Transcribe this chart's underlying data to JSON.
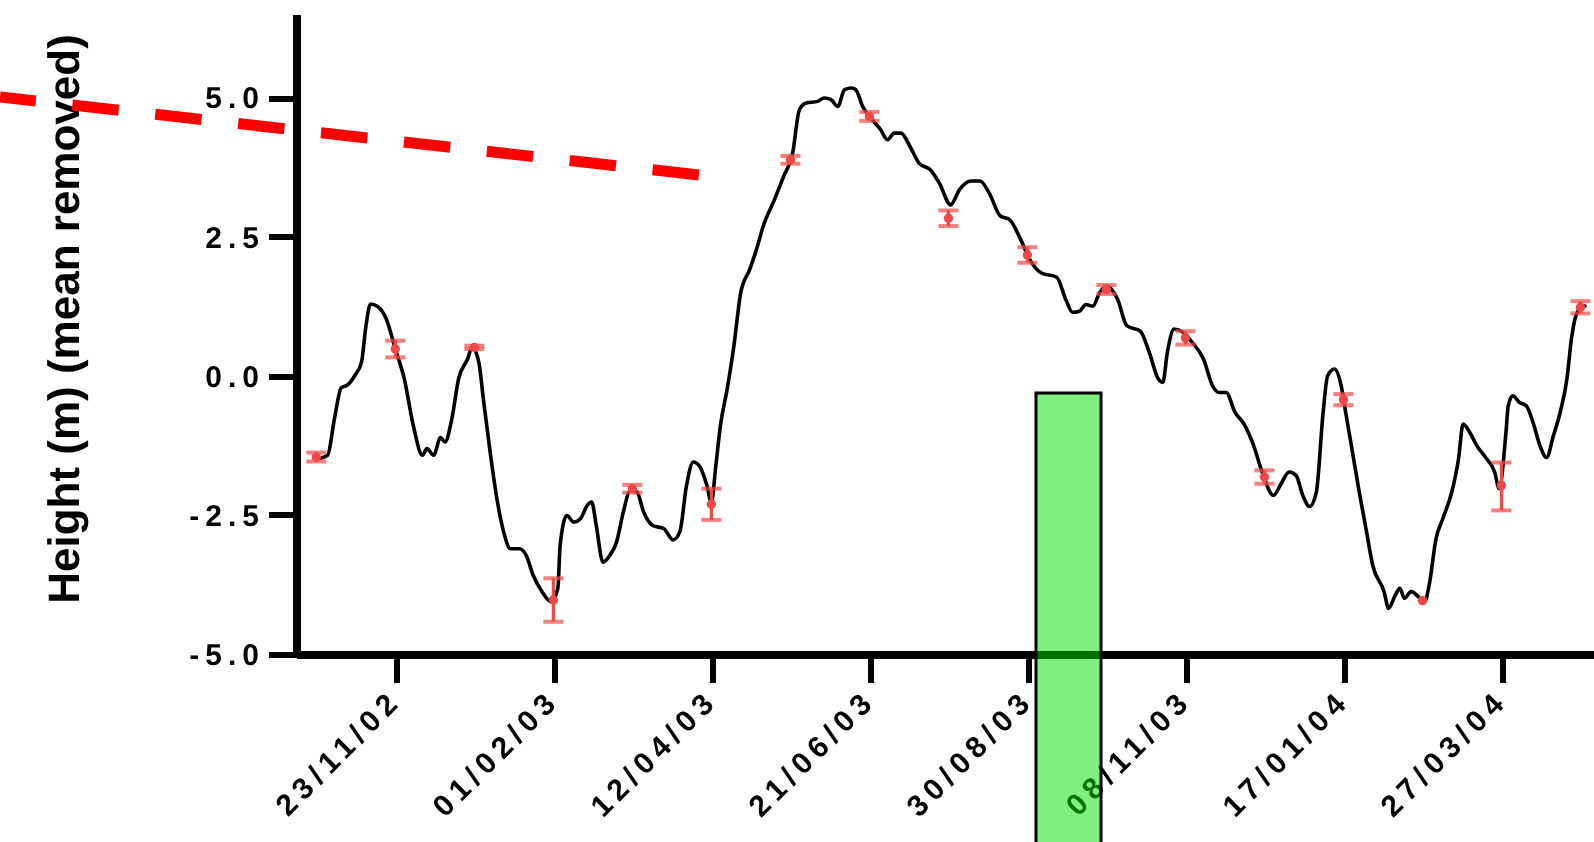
{
  "chart_data": {
    "type": "line",
    "ylabel": "Height (m) (mean removed)",
    "xlim": [
      "2002-10-10",
      "2004-05-07"
    ],
    "xticks": [
      {
        "value": "2002-11-23",
        "label": "23/11/02"
      },
      {
        "value": "2003-02-01",
        "label": "01/02/03"
      },
      {
        "value": "2003-04-12",
        "label": "12/04/03"
      },
      {
        "value": "2003-06-21",
        "label": "21/06/03"
      },
      {
        "value": "2003-08-30",
        "label": "30/08/03"
      },
      {
        "value": "2003-11-08",
        "label": "08/11/03"
      },
      {
        "value": "2004-01-17",
        "label": "17/01/04"
      },
      {
        "value": "2004-03-27",
        "label": "27/03/04"
      }
    ],
    "ylim": [
      -5,
      6.5
    ],
    "yticks": [
      {
        "value": -5,
        "label": "-5.0"
      },
      {
        "value": -2.5,
        "label": "-2.5"
      },
      {
        "value": 0,
        "label": "0.0"
      },
      {
        "value": 2.5,
        "label": "2.5"
      },
      {
        "value": 5,
        "label": "5.0"
      }
    ],
    "series": [
      {
        "type": "line",
        "color": "#000000",
        "x": [
          "2002-10-20",
          "2002-10-24",
          "2002-10-27",
          "2002-10-30",
          "2002-11-02",
          "2002-11-05",
          "2002-11-08",
          "2002-11-10",
          "2002-11-12",
          "2002-11-15",
          "2002-11-19",
          "2002-11-23",
          "2002-11-27",
          "2002-12-01",
          "2002-12-05",
          "2002-12-07",
          "2002-12-10",
          "2002-12-13",
          "2002-12-15",
          "2002-12-18",
          "2002-12-21",
          "2002-12-25",
          "2002-12-27",
          "2002-12-30",
          "2003-01-01",
          "2003-01-04",
          "2003-01-07",
          "2003-01-10",
          "2003-01-13",
          "2003-01-17",
          "2003-01-20",
          "2003-01-23",
          "2003-01-27",
          "2003-01-31",
          "2003-02-03",
          "2003-02-04",
          "2003-02-07",
          "2003-02-10",
          "2003-02-13",
          "2003-02-16",
          "2003-02-18",
          "2003-02-20",
          "2003-02-23",
          "2003-02-26",
          "2003-03-01",
          "2003-03-04",
          "2003-03-07",
          "2003-03-10",
          "2003-03-13",
          "2003-03-17",
          "2003-03-22",
          "2003-03-26",
          "2003-03-29",
          "2003-04-01",
          "2003-04-04",
          "2003-04-07",
          "2003-04-10",
          "2003-04-12",
          "2003-04-14",
          "2003-04-16",
          "2003-04-19",
          "2003-04-22",
          "2003-04-25",
          "2003-04-29",
          "2003-05-02",
          "2003-05-05",
          "2003-05-10",
          "2003-05-14",
          "2003-05-18",
          "2003-05-21",
          "2003-05-24",
          "2003-05-29",
          "2003-06-01",
          "2003-06-04",
          "2003-06-07",
          "2003-06-10",
          "2003-06-13",
          "2003-06-15",
          "2003-06-18",
          "2003-06-21",
          "2003-06-26",
          "2003-06-29",
          "2003-07-02",
          "2003-07-05",
          "2003-07-09",
          "2003-07-13",
          "2003-07-18",
          "2003-07-22",
          "2003-07-27",
          "2003-07-31",
          "2003-08-05",
          "2003-08-09",
          "2003-08-13",
          "2003-08-18",
          "2003-08-22",
          "2003-08-27",
          "2003-08-31",
          "2003-09-05",
          "2003-09-12",
          "2003-09-16",
          "2003-09-19",
          "2003-09-22",
          "2003-09-25",
          "2003-09-28",
          "2003-10-01",
          "2003-10-04",
          "2003-10-09",
          "2003-10-13",
          "2003-10-19",
          "2003-10-23",
          "2003-10-27",
          "2003-10-29",
          "2003-10-31",
          "2003-11-03",
          "2003-11-07",
          "2003-11-11",
          "2003-11-16",
          "2003-11-20",
          "2003-11-23",
          "2003-11-26",
          "2003-11-30",
          "2003-12-04",
          "2003-12-08",
          "2003-12-12",
          "2003-12-17",
          "2003-12-20",
          "2003-12-24",
          "2003-12-27",
          "2003-12-30",
          "2004-01-02",
          "2004-01-05",
          "2004-01-08",
          "2004-01-10",
          "2004-01-13",
          "2004-01-16",
          "2004-01-18",
          "2004-01-21",
          "2004-01-24",
          "2004-01-27",
          "2004-01-30",
          "2004-02-04",
          "2004-02-06",
          "2004-02-09",
          "2004-02-11",
          "2004-02-13",
          "2004-02-16",
          "2004-02-20",
          "2004-02-22",
          "2004-02-24",
          "2004-02-27",
          "2004-03-01",
          "2004-03-05",
          "2004-03-08",
          "2004-03-10",
          "2004-03-13",
          "2004-03-16",
          "2004-03-20",
          "2004-03-24",
          "2004-03-26",
          "2004-03-29",
          "2004-03-30",
          "2004-04-01",
          "2004-04-04",
          "2004-04-07",
          "2004-04-10",
          "2004-04-13",
          "2004-04-16",
          "2004-04-19",
          "2004-04-22",
          "2004-04-25",
          "2004-04-27",
          "2004-04-29",
          "2004-05-02",
          "2004-05-03"
        ],
        "values": [
          -1.49,
          -1.43,
          -0.78,
          -0.22,
          -0.16,
          0,
          0.24,
          0.9,
          1.29,
          1.25,
          1.02,
          0.48,
          -0.06,
          -0.9,
          -1.43,
          -1.31,
          -1.43,
          -1.11,
          -1.19,
          -0.78,
          -0.06,
          0.3,
          0.51,
          0.24,
          -0.42,
          -1.37,
          -2.21,
          -2.81,
          -3.11,
          -3.11,
          -3.23,
          -3.58,
          -3.88,
          -4.06,
          -3.82,
          -3.05,
          -2.51,
          -2.63,
          -2.57,
          -2.33,
          -2.27,
          -2.69,
          -3.35,
          -3.23,
          -2.99,
          -2.45,
          -2.07,
          -2.09,
          -2.45,
          -2.69,
          -2.75,
          -2.95,
          -2.81,
          -1.97,
          -1.55,
          -1.64,
          -1.97,
          -2.27,
          -1.61,
          -0.9,
          -0.24,
          0.54,
          1.49,
          1.91,
          2.27,
          2.69,
          3.17,
          3.58,
          4,
          4.78,
          4.9,
          4.93,
          4.99,
          4.96,
          4.84,
          5.14,
          5.17,
          5.14,
          4.84,
          4.66,
          4.42,
          4.24,
          4.36,
          4.36,
          4.12,
          3.82,
          3.7,
          3.46,
          3.07,
          3.35,
          3.5,
          3.5,
          3.29,
          2.87,
          2.81,
          2.45,
          2.09,
          1.85,
          1.77,
          1.37,
          1.14,
          1.16,
          1.28,
          1.25,
          1.49,
          1.61,
          1.37,
          0.9,
          0.8,
          0.42,
          -0.06,
          -0.12,
          0.42,
          0.84,
          0.78,
          0.6,
          0.3,
          -0.18,
          -0.3,
          -0.3,
          -0.66,
          -0.87,
          -1.23,
          -1.73,
          -2.15,
          -1.97,
          -1.73,
          -1.79,
          -2.15,
          -2.35,
          -2.09,
          -0.66,
          0,
          0.12,
          -0.18,
          -0.66,
          -1.37,
          -2.09,
          -2.75,
          -3.41,
          -3.88,
          -4.18,
          -3.94,
          -3.82,
          -4,
          -3.88,
          -4,
          -4.06,
          -3.76,
          -2.93,
          -2.57,
          -2.09,
          -1.49,
          -0.87,
          -1.02,
          -1.25,
          -1.47,
          -1.73,
          -2.03,
          -1.02,
          -0.54,
          -0.36,
          -0.48,
          -0.54,
          -0.84,
          -1.25,
          -1.47,
          -1.08,
          -0.66,
          -0.06,
          0.66,
          1.08,
          1.25,
          1.25
        ]
      },
      {
        "type": "scatter",
        "color": "#f04848",
        "marker": "circle",
        "x": [
          "2002-10-19",
          "2002-11-23",
          "2002-12-28",
          "2003-02-01",
          "2003-03-08",
          "2003-04-12",
          "2003-05-17",
          "2003-06-21",
          "2003-07-26",
          "2003-08-30",
          "2003-10-04",
          "2003-11-08",
          "2003-12-13",
          "2004-01-17",
          "2004-02-21",
          "2004-03-27",
          "2004-05-01"
        ],
        "values": [
          -1.46,
          0.48,
          0.51,
          -4.03,
          -2.03,
          -2.31,
          3.88,
          4.66,
          2.83,
          2.17,
          1.55,
          0.68,
          -1.82,
          -0.43,
          -4.04,
          -1.97,
          1.23
        ],
        "errors": [
          0.08,
          0.15,
          0.03,
          0.39,
          0.07,
          0.28,
          0.07,
          0.08,
          0.14,
          0.14,
          0.08,
          0.12,
          0.12,
          0.1,
          null,
          [
            -2.42,
            -1.56
          ],
          0.11
        ]
      }
    ]
  }
}
